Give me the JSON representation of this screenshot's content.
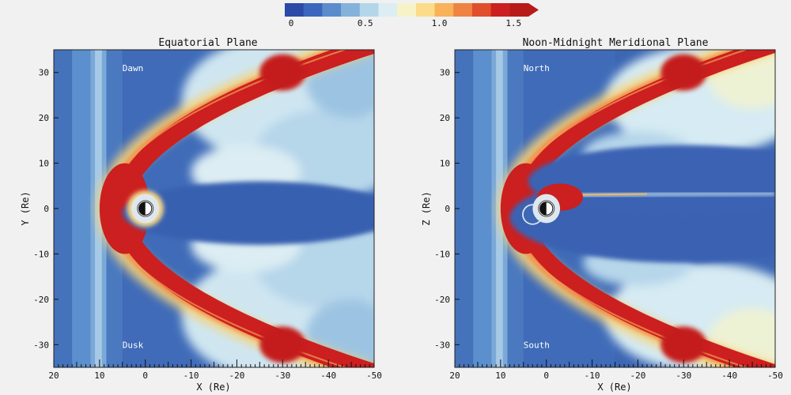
{
  "colorbar": {
    "ticks": [
      {
        "value": 0,
        "label": "0"
      },
      {
        "value": 0.5,
        "label": "0.5"
      },
      {
        "value": 1.0,
        "label": "1.0"
      },
      {
        "value": 1.5,
        "label": "1.5"
      }
    ],
    "range": [
      0,
      1.6
    ],
    "colors": [
      "#2b4aa8",
      "#3a66bd",
      "#5a8ccc",
      "#84b2db",
      "#b4d6ea",
      "#dcedf3",
      "#f7f3c9",
      "#fbdc8a",
      "#f8b259",
      "#ef8341",
      "#e04e2c",
      "#cc2020",
      "#b81a1a"
    ]
  },
  "chart_data": [
    {
      "type": "heatmap",
      "title": "Equatorial Plane",
      "xlabel": "X (Re)",
      "ylabel": "Y (Re)",
      "xlim": [
        20,
        -50
      ],
      "ylim": [
        -35,
        35
      ],
      "xticks": [
        20,
        10,
        0,
        -10,
        -20,
        -30,
        -40,
        -50
      ],
      "yticks": [
        30,
        20,
        10,
        0,
        -10,
        -20,
        -30
      ],
      "annotations": [
        {
          "text": "Dawn",
          "x": 5,
          "y": 31
        },
        {
          "text": "Dusk",
          "x": 5,
          "y": -30
        }
      ],
      "bow_shock": {
        "nose_x": 8,
        "flank_x_at_y30": -30
      },
      "tail": {
        "shape": "wide-lobes"
      }
    },
    {
      "type": "heatmap",
      "title": "Noon-Midnight Meridional Plane",
      "xlabel": "X (Re)",
      "ylabel": "Z (Re)",
      "xlim": [
        20,
        -50
      ],
      "ylim": [
        -35,
        35
      ],
      "xticks": [
        20,
        10,
        0,
        -10,
        -20,
        -30,
        -40,
        -50
      ],
      "yticks": [
        30,
        20,
        10,
        0,
        -10,
        -20,
        -30
      ],
      "annotations": [
        {
          "text": "North",
          "x": 5,
          "y": 31
        },
        {
          "text": "South",
          "x": 5,
          "y": -30
        }
      ],
      "bow_shock": {
        "nose_x": 8,
        "flank_x_at_y30": -30
      },
      "tail": {
        "shape": "thin-current-sheet"
      }
    }
  ]
}
